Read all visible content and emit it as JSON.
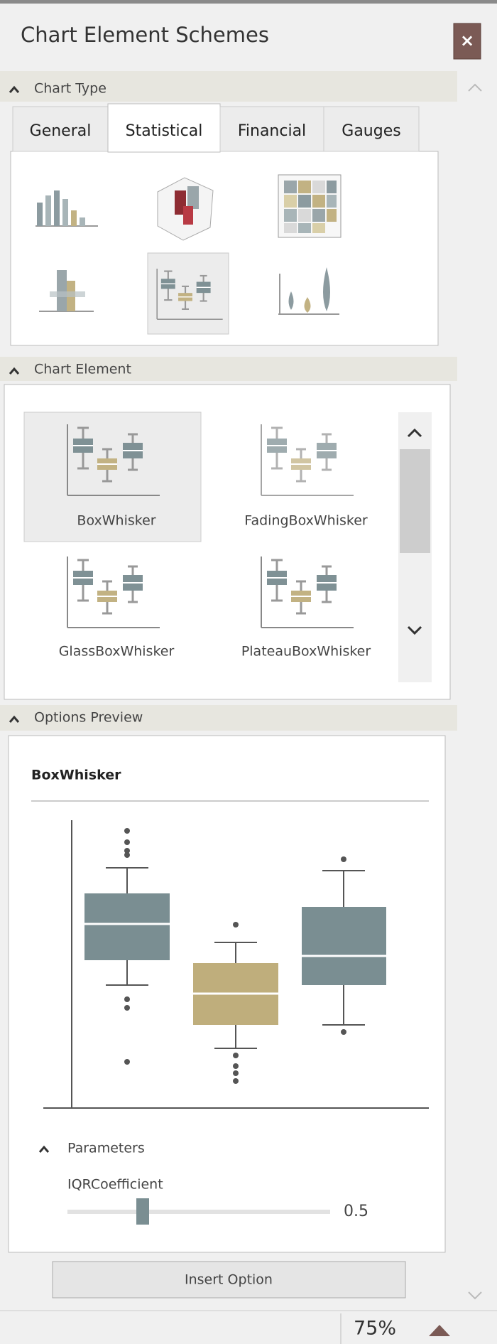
{
  "header": {
    "title": "Chart Element Schemes",
    "close": "×"
  },
  "chart_type": {
    "heading": "Chart Type",
    "tabs": [
      "General",
      "Statistical",
      "Financial",
      "Gauges"
    ]
  },
  "chart_element": {
    "heading": "Chart Element",
    "items": [
      "BoxWhisker",
      "FadingBoxWhisker",
      "GlassBoxWhisker",
      "PlateauBoxWhisker"
    ]
  },
  "options_preview": {
    "heading": "Options Preview",
    "preview_title": "BoxWhisker",
    "parameters_heading": "Parameters",
    "parameter": {
      "name": "IQRCoefficient",
      "value": 0.5
    }
  },
  "insert_button": "Insert Option",
  "status": {
    "zoom": "75%"
  }
}
